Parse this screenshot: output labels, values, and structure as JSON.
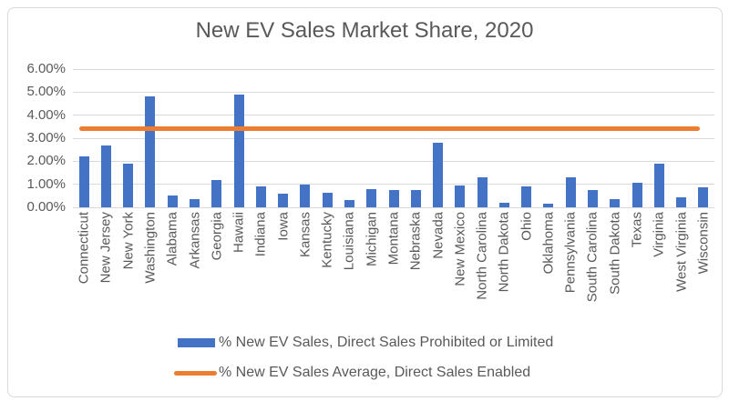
{
  "chart_data": {
    "type": "bar",
    "title": "New EV Sales Market Share, 2020",
    "categories": [
      "Connecticut",
      "New Jersey",
      "New York",
      "Washington",
      "Alabama",
      "Arkansas",
      "Georgia",
      "Hawaii",
      "Indiana",
      "Iowa",
      "Kansas",
      "Kentucky",
      "Louisiana",
      "Michigan",
      "Montana",
      "Nebraska",
      "Nevada",
      "New Mexico",
      "North Carolina",
      "North Dakota",
      "Ohio",
      "Oklahoma",
      "Pennsylvania",
      "South Carolina",
      "South Dakota",
      "Texas",
      "Virginia",
      "West Virginia",
      "Wisconsin"
    ],
    "series": [
      {
        "name": "% New EV Sales, Direct Sales Prohibited or Limited",
        "type": "bar",
        "color": "#4472C4",
        "values": [
          2.2,
          2.7,
          1.9,
          4.8,
          0.5,
          0.35,
          1.2,
          4.9,
          0.9,
          0.6,
          1.0,
          0.65,
          0.3,
          0.8,
          0.75,
          0.75,
          2.8,
          0.95,
          1.3,
          0.2,
          0.9,
          0.15,
          1.3,
          0.75,
          0.35,
          1.05,
          1.9,
          0.45,
          0.85
        ]
      },
      {
        "name": "% New EV Sales Average, Direct Sales Enabled",
        "type": "line",
        "color": "#ED7D31",
        "value": 3.4
      }
    ],
    "xlabel": "",
    "ylabel": "",
    "ylim": [
      0,
      6
    ],
    "y_tick_labels": [
      "0.00%",
      "1.00%",
      "2.00%",
      "3.00%",
      "4.00%",
      "5.00%",
      "6.00%"
    ],
    "y_tick_unit": "percent",
    "grid": true,
    "legend_position": "bottom",
    "colors": {
      "grid": "#D9D9D9",
      "text": "#595959",
      "border": "#D9D9D9",
      "background": "#FFFFFF"
    }
  }
}
